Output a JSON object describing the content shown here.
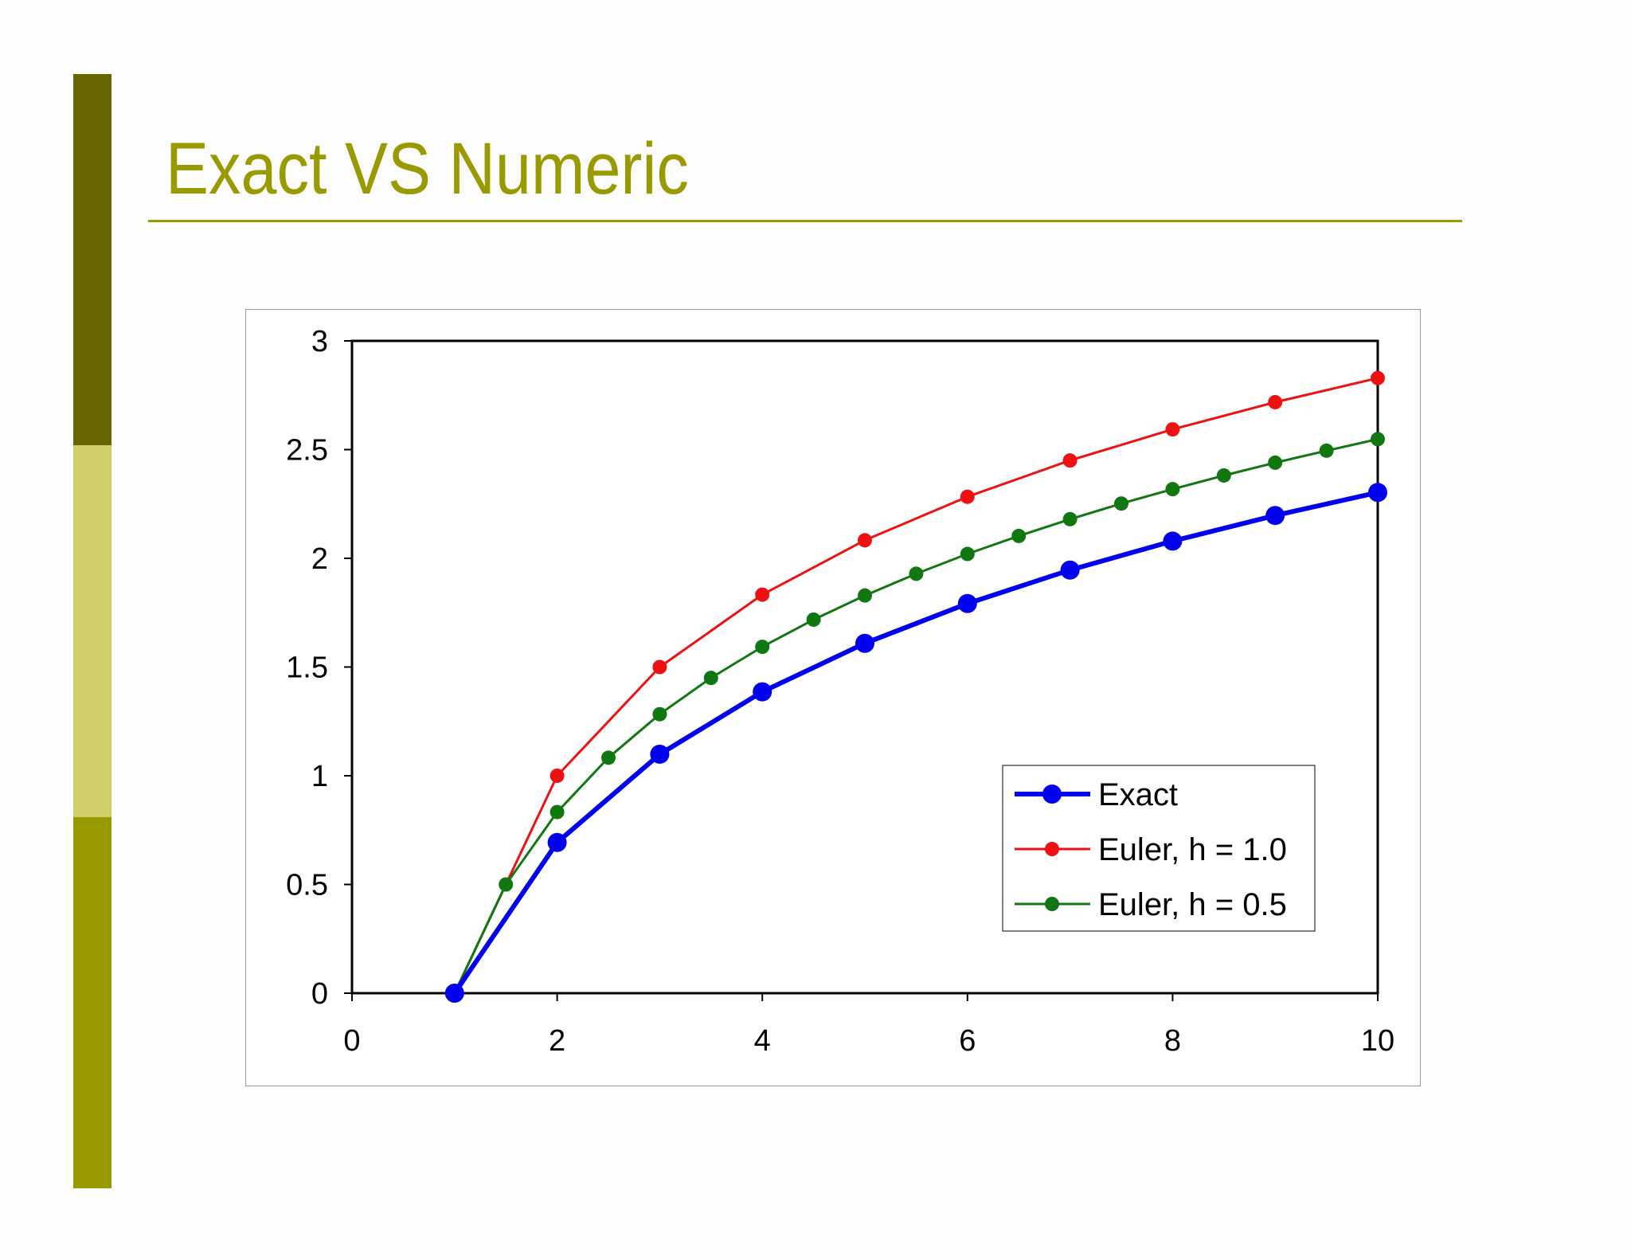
{
  "slide": {
    "title": "Exact VS Numeric",
    "colors": {
      "bar_top": "#666600",
      "bar_mid": "#cfcf6a",
      "bar_bottom": "#999900",
      "title": "#999900"
    }
  },
  "chart_data": {
    "type": "line",
    "title": "",
    "xlabel": "",
    "ylabel": "",
    "xlim": [
      0,
      10
    ],
    "ylim": [
      0,
      3
    ],
    "xticks": [
      0,
      2,
      4,
      6,
      8,
      10
    ],
    "yticks": [
      0,
      0.5,
      1,
      1.5,
      2,
      2.5,
      3
    ],
    "grid": false,
    "legend_position": "bottom-right",
    "series": [
      {
        "name": "Exact",
        "color": "#0000ee",
        "x": [
          1,
          2,
          3,
          4,
          5,
          6,
          7,
          8,
          9,
          10
        ],
        "y": [
          0,
          0.693,
          1.099,
          1.386,
          1.609,
          1.792,
          1.946,
          2.079,
          2.197,
          2.303
        ]
      },
      {
        "name": "Euler, h = 1.0",
        "color": "#ee1111",
        "x": [
          1,
          2,
          3,
          4,
          5,
          6,
          7,
          8,
          9,
          10
        ],
        "y": [
          0,
          1.0,
          1.5,
          1.833,
          2.083,
          2.283,
          2.45,
          2.593,
          2.718,
          2.829
        ]
      },
      {
        "name": "Euler, h = 0.5",
        "color": "#117711",
        "x": [
          1,
          1.5,
          2,
          2.5,
          3,
          3.5,
          4,
          4.5,
          5,
          5.5,
          6,
          6.5,
          7,
          7.5,
          8,
          8.5,
          9,
          9.5,
          10
        ],
        "y": [
          0,
          0.5,
          0.833,
          1.083,
          1.283,
          1.45,
          1.593,
          1.718,
          1.829,
          1.929,
          2.02,
          2.103,
          2.18,
          2.252,
          2.318,
          2.381,
          2.44,
          2.495,
          2.548
        ]
      }
    ]
  }
}
